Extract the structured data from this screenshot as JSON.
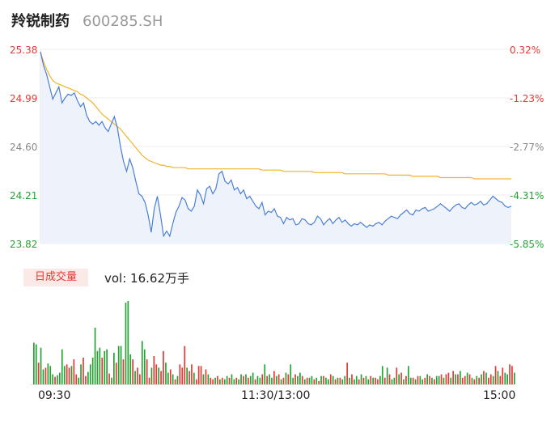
{
  "header": {
    "name": "羚锐制药",
    "code": "600285.SH"
  },
  "colors": {
    "up": "#e53935",
    "down": "#26a136",
    "neutral": "#888888",
    "price_line": "#4a7fd6",
    "avg_line": "#f0b42a"
  },
  "volume_panel": {
    "tag": "日成交量",
    "total_label": "vol: 16.62万手"
  },
  "chart_data": [
    {
      "type": "line",
      "title": "",
      "prev_close": 25.3,
      "ylim": [
        23.82,
        25.38
      ],
      "y_ticks": [
        "25.38",
        "24.99",
        "24.60",
        "24.21",
        "23.82"
      ],
      "pct_ticks": [
        "0.32%",
        "-1.23%",
        "-2.77%",
        "-4.31%",
        "-5.85%"
      ],
      "x_ticks": [
        "09:30",
        "11:30/13:00",
        "15:00"
      ],
      "series": [
        {
          "type": "price",
          "values": [
            25.36,
            25.25,
            25.18,
            25.08,
            24.98,
            25.03,
            25.08,
            24.95,
            24.99,
            25.02,
            25.01,
            25.03,
            24.97,
            24.92,
            24.95,
            24.85,
            24.8,
            24.78,
            24.8,
            24.77,
            24.8,
            24.75,
            24.72,
            24.78,
            24.84,
            24.75,
            24.6,
            24.48,
            24.4,
            24.5,
            24.43,
            24.32,
            24.22,
            24.2,
            24.15,
            24.05,
            23.91,
            24.1,
            24.2,
            24.05,
            23.88,
            23.92,
            23.88,
            23.98,
            24.07,
            24.12,
            24.19,
            24.17,
            24.1,
            24.08,
            24.12,
            24.25,
            24.21,
            24.14,
            24.26,
            24.28,
            24.22,
            24.26,
            24.38,
            24.4,
            24.32,
            24.3,
            24.33,
            24.25,
            24.27,
            24.22,
            24.25,
            24.18,
            24.2,
            24.16,
            24.12,
            24.1,
            24.15,
            24.05,
            24.08,
            24.07,
            24.1,
            24.04,
            24.03,
            23.98,
            24.03,
            24.01,
            24.02,
            23.97,
            23.98,
            24.02,
            24.01,
            23.98,
            23.97,
            23.99,
            24.04,
            24.02,
            23.97,
            24.0,
            24.02,
            23.98,
            24.01,
            24.03,
            23.99,
            24.01,
            23.98,
            23.96,
            23.98,
            23.97,
            23.99,
            23.97,
            23.95,
            23.97,
            23.96,
            23.98,
            23.99,
            23.97,
            24.0,
            24.02,
            24.04,
            24.03,
            24.02,
            24.05,
            24.07,
            24.09,
            24.06,
            24.05,
            24.09,
            24.08,
            24.1,
            24.11,
            24.08,
            24.09,
            24.1,
            24.12,
            24.14,
            24.12,
            24.1,
            24.08,
            24.11,
            24.13,
            24.14,
            24.11,
            24.1,
            24.13,
            24.15,
            24.13,
            24.14,
            24.16,
            24.13,
            24.14,
            24.17,
            24.2,
            24.18,
            24.16,
            24.15,
            24.12,
            24.11,
            24.12
          ]
        },
        {
          "type": "average",
          "values": [
            25.36,
            25.28,
            25.22,
            25.17,
            25.13,
            25.11,
            25.1,
            25.09,
            25.08,
            25.07,
            25.06,
            25.05,
            25.04,
            25.02,
            25.01,
            24.99,
            24.97,
            24.95,
            24.92,
            24.89,
            24.86,
            24.84,
            24.82,
            24.8,
            24.78,
            24.76,
            24.74,
            24.71,
            24.68,
            24.65,
            24.62,
            24.59,
            24.56,
            24.53,
            24.51,
            24.49,
            24.48,
            24.47,
            24.46,
            24.45,
            24.45,
            24.44,
            24.44,
            24.43,
            24.43,
            24.43,
            24.43,
            24.43,
            24.42,
            24.42,
            24.42,
            24.42,
            24.42,
            24.42,
            24.42,
            24.42,
            24.42,
            24.42,
            24.42,
            24.42,
            24.42,
            24.42,
            24.42,
            24.42,
            24.42,
            24.42,
            24.42,
            24.42,
            24.42,
            24.42,
            24.42,
            24.42,
            24.41,
            24.41,
            24.41,
            24.41,
            24.41,
            24.41,
            24.41,
            24.4,
            24.4,
            24.4,
            24.4,
            24.4,
            24.4,
            24.4,
            24.4,
            24.4,
            24.4,
            24.39,
            24.39,
            24.39,
            24.39,
            24.39,
            24.39,
            24.39,
            24.39,
            24.39,
            24.39,
            24.38,
            24.38,
            24.38,
            24.38,
            24.38,
            24.38,
            24.38,
            24.38,
            24.38,
            24.38,
            24.38,
            24.38,
            24.38,
            24.38,
            24.37,
            24.37,
            24.37,
            24.37,
            24.37,
            24.37,
            24.37,
            24.37,
            24.36,
            24.36,
            24.36,
            24.36,
            24.36,
            24.36,
            24.36,
            24.36,
            24.36,
            24.35,
            24.35,
            24.35,
            24.35,
            24.35,
            24.35,
            24.35,
            24.35,
            24.35,
            24.35,
            24.35,
            24.34,
            24.34,
            24.34,
            24.34,
            24.34,
            24.34,
            24.34,
            24.34,
            24.34,
            24.34,
            24.34,
            24.34,
            24.34
          ]
        }
      ]
    },
    {
      "type": "bar",
      "title": "日成交量",
      "ylim": [
        0,
        100
      ],
      "values": [
        50,
        48,
        26,
        44,
        18,
        20,
        25,
        22,
        12,
        9,
        11,
        14,
        42,
        22,
        24,
        20,
        22,
        30,
        12,
        8,
        24,
        32,
        10,
        15,
        24,
        32,
        68,
        40,
        44,
        32,
        40,
        42,
        13,
        8,
        38,
        26,
        46,
        46,
        30,
        98,
        100,
        36,
        30,
        16,
        20,
        12,
        52,
        42,
        30,
        8,
        20,
        34,
        24,
        20,
        16,
        40,
        26,
        14,
        18,
        12,
        6,
        10,
        24,
        20,
        46,
        20,
        16,
        24,
        14,
        6,
        22,
        22,
        12,
        18,
        12,
        8,
        6,
        8,
        10,
        6,
        8,
        6,
        10,
        8,
        12,
        6,
        8,
        6,
        12,
        10,
        12,
        8,
        10,
        14,
        6,
        10,
        8,
        12,
        24,
        10,
        12,
        8,
        16,
        10,
        12,
        6,
        8,
        14,
        12,
        24,
        8,
        12,
        10,
        14,
        10,
        6,
        8,
        8,
        10,
        6,
        8,
        4,
        10,
        10,
        8,
        6,
        12,
        10,
        6,
        8,
        8,
        6,
        10,
        26,
        8,
        12,
        6,
        10,
        6,
        12,
        8,
        10,
        6,
        10,
        8,
        8,
        6,
        10,
        22,
        8,
        20,
        12,
        6,
        8,
        20,
        12,
        14,
        6,
        10,
        22,
        8,
        8,
        6,
        10,
        10,
        6,
        8,
        12,
        10,
        8,
        6,
        10,
        10,
        12,
        8,
        12,
        14,
        8,
        16,
        12,
        12,
        16,
        8,
        10,
        14,
        12,
        8,
        6,
        10,
        8,
        12,
        16,
        14,
        8,
        12,
        10,
        22,
        16,
        10,
        20,
        14,
        12,
        24,
        22,
        14
      ],
      "up_flags": [
        0,
        0,
        1,
        0,
        0,
        1,
        0,
        0,
        0,
        1,
        0,
        0,
        0,
        0,
        1,
        1,
        0,
        1,
        1,
        0,
        0,
        1,
        1,
        0,
        0,
        0,
        0,
        0,
        0,
        1,
        0,
        0,
        1,
        0,
        0,
        1,
        0,
        0,
        1,
        0,
        0,
        0,
        1,
        0,
        1,
        1,
        0,
        0,
        1,
        1,
        0,
        1,
        1,
        0,
        1,
        1,
        0,
        0,
        1,
        0,
        1,
        0,
        1,
        1,
        1,
        0,
        1,
        1,
        0,
        1,
        1,
        1,
        0,
        1,
        0,
        1,
        1,
        0,
        1,
        0,
        1,
        0,
        0,
        1,
        0,
        0,
        1,
        0,
        0,
        1,
        0,
        1,
        0,
        0,
        1,
        0,
        0,
        1,
        0,
        1,
        0,
        0,
        1,
        0,
        1,
        0,
        1,
        0,
        1,
        0,
        0,
        1,
        0,
        0,
        1,
        0,
        1,
        0,
        0,
        1,
        0,
        1,
        0,
        1,
        0,
        0,
        1,
        0,
        1,
        0,
        1,
        0,
        0,
        1,
        0,
        1,
        0,
        0,
        1,
        0,
        1,
        0,
        0,
        1,
        0,
        1,
        1,
        0,
        0,
        1,
        0,
        1,
        0,
        0,
        1,
        0,
        1,
        0,
        1,
        0,
        0,
        1,
        0,
        1,
        0,
        0,
        1,
        0,
        1,
        0,
        1,
        0,
        0,
        1,
        0,
        1,
        1,
        0,
        1,
        0,
        1,
        0,
        1,
        1,
        0,
        1,
        0,
        1,
        0,
        1,
        0,
        1,
        0,
        1,
        1,
        0,
        1,
        0,
        1,
        1,
        0,
        0,
        1,
        1,
        0
      ]
    }
  ]
}
